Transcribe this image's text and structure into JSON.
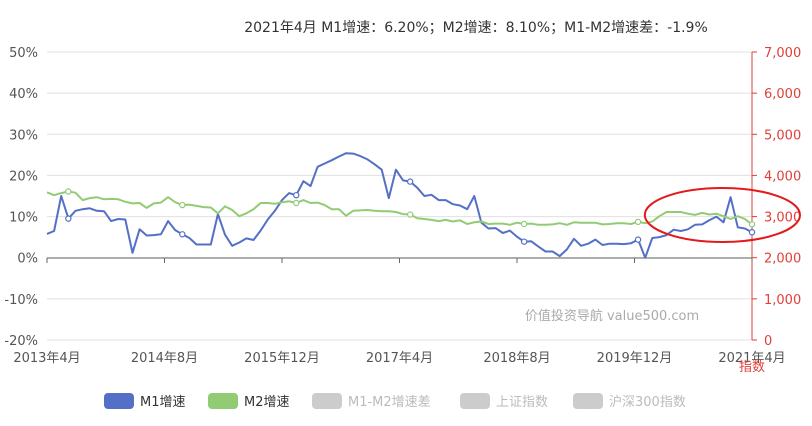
{
  "chart_data": {
    "type": "line",
    "title": "2021年4月    M1增速：6.20%；M2增速：8.10%；M1-M2增速差：-1.9%",
    "y_left": {
      "ticks": [
        "50%",
        "40%",
        "30%",
        "20%",
        "10%",
        "0%",
        "-10%",
        "-20%"
      ],
      "ylim": [
        -20,
        50
      ]
    },
    "y_right": {
      "label": "指数",
      "ticks": [
        "7,000",
        "6,000",
        "5,000",
        "4,000",
        "3,000",
        "2,000",
        "1,000",
        "0"
      ],
      "ylim": [
        0,
        7000
      ]
    },
    "x_ticks": [
      "2013年4月",
      "2014年8月",
      "2015年12月",
      "2017年4月",
      "2018年8月",
      "2019年12月",
      "2021年4月"
    ],
    "x_range": [
      "2013-01",
      "2021-04"
    ],
    "grid": true,
    "watermark": "价值投资导航 value500.com",
    "highlight": {
      "shape": "ellipse",
      "color": "#e31a1c",
      "around": [
        "2020-06",
        "2021-04"
      ]
    },
    "series": [
      {
        "name": "M1增速",
        "color": "#5470c6",
        "points": [
          [
            "2013-01",
            5.8
          ],
          [
            "2013-02",
            6.5
          ],
          [
            "2013-03",
            15.0
          ],
          [
            "2013-04",
            9.5
          ],
          [
            "2013-05",
            11.4
          ],
          [
            "2013-06",
            11.8
          ],
          [
            "2013-07",
            12.0
          ],
          [
            "2013-08",
            11.4
          ],
          [
            "2013-09",
            11.3
          ],
          [
            "2013-10",
            8.9
          ],
          [
            "2013-11",
            9.4
          ],
          [
            "2013-12",
            9.3
          ],
          [
            "2014-01",
            1.2
          ],
          [
            "2014-02",
            6.9
          ],
          [
            "2014-03",
            5.4
          ],
          [
            "2014-04",
            5.5
          ],
          [
            "2014-05",
            5.7
          ],
          [
            "2014-06",
            8.9
          ],
          [
            "2014-07",
            6.7
          ],
          [
            "2014-08",
            5.7
          ],
          [
            "2014-09",
            4.8
          ],
          [
            "2014-10",
            3.2
          ],
          [
            "2014-11",
            3.2
          ],
          [
            "2014-12",
            3.2
          ],
          [
            "2015-01",
            10.6
          ],
          [
            "2015-02",
            5.6
          ],
          [
            "2015-03",
            2.9
          ],
          [
            "2015-04",
            3.7
          ],
          [
            "2015-05",
            4.7
          ],
          [
            "2015-06",
            4.3
          ],
          [
            "2015-07",
            6.6
          ],
          [
            "2015-08",
            9.3
          ],
          [
            "2015-09",
            11.4
          ],
          [
            "2015-10",
            14.0
          ],
          [
            "2015-11",
            15.7
          ],
          [
            "2015-12",
            15.2
          ],
          [
            "2016-01",
            18.6
          ],
          [
            "2016-02",
            17.4
          ],
          [
            "2016-03",
            22.1
          ],
          [
            "2016-04",
            22.9
          ],
          [
            "2016-05",
            23.7
          ],
          [
            "2016-06",
            24.6
          ],
          [
            "2016-07",
            25.4
          ],
          [
            "2016-08",
            25.3
          ],
          [
            "2016-09",
            24.7
          ],
          [
            "2016-10",
            23.9
          ],
          [
            "2016-11",
            22.7
          ],
          [
            "2016-12",
            21.4
          ],
          [
            "2017-01",
            14.5
          ],
          [
            "2017-02",
            21.4
          ],
          [
            "2017-03",
            18.8
          ],
          [
            "2017-04",
            18.5
          ],
          [
            "2017-05",
            17.0
          ],
          [
            "2017-06",
            15.0
          ],
          [
            "2017-07",
            15.3
          ],
          [
            "2017-08",
            14.0
          ],
          [
            "2017-09",
            14.0
          ],
          [
            "2017-10",
            13.0
          ],
          [
            "2017-11",
            12.7
          ],
          [
            "2017-12",
            11.8
          ],
          [
            "2018-01",
            15.0
          ],
          [
            "2018-02",
            8.5
          ],
          [
            "2018-03",
            7.1
          ],
          [
            "2018-04",
            7.2
          ],
          [
            "2018-05",
            6.0
          ],
          [
            "2018-06",
            6.6
          ],
          [
            "2018-07",
            5.1
          ],
          [
            "2018-08",
            3.9
          ],
          [
            "2018-09",
            4.0
          ],
          [
            "2018-10",
            2.7
          ],
          [
            "2018-11",
            1.5
          ],
          [
            "2018-12",
            1.5
          ],
          [
            "2019-01",
            0.4
          ],
          [
            "2019-02",
            2.0
          ],
          [
            "2019-03",
            4.6
          ],
          [
            "2019-04",
            2.9
          ],
          [
            "2019-05",
            3.4
          ],
          [
            "2019-06",
            4.4
          ],
          [
            "2019-07",
            3.1
          ],
          [
            "2019-08",
            3.4
          ],
          [
            "2019-09",
            3.4
          ],
          [
            "2019-10",
            3.3
          ],
          [
            "2019-11",
            3.5
          ],
          [
            "2019-12",
            4.4
          ],
          [
            "2020-01",
            0.0
          ],
          [
            "2020-02",
            4.8
          ],
          [
            "2020-03",
            5.0
          ],
          [
            "2020-04",
            5.5
          ],
          [
            "2020-05",
            6.8
          ],
          [
            "2020-06",
            6.5
          ],
          [
            "2020-07",
            6.9
          ],
          [
            "2020-08",
            8.0
          ],
          [
            "2020-09",
            8.1
          ],
          [
            "2020-10",
            9.1
          ],
          [
            "2020-11",
            10.0
          ],
          [
            "2020-12",
            8.6
          ],
          [
            "2021-01",
            14.7
          ],
          [
            "2021-02",
            7.4
          ],
          [
            "2021-03",
            7.1
          ],
          [
            "2021-04",
            6.2
          ]
        ]
      },
      {
        "name": "M2增速",
        "color": "#91cc75",
        "points": [
          [
            "2013-01",
            15.9
          ],
          [
            "2013-02",
            15.2
          ],
          [
            "2013-03",
            15.7
          ],
          [
            "2013-04",
            16.1
          ],
          [
            "2013-05",
            15.8
          ],
          [
            "2013-06",
            14.0
          ],
          [
            "2013-07",
            14.5
          ],
          [
            "2013-08",
            14.7
          ],
          [
            "2013-09",
            14.2
          ],
          [
            "2013-10",
            14.3
          ],
          [
            "2013-11",
            14.2
          ],
          [
            "2013-12",
            13.6
          ],
          [
            "2014-01",
            13.2
          ],
          [
            "2014-02",
            13.3
          ],
          [
            "2014-03",
            12.1
          ],
          [
            "2014-04",
            13.2
          ],
          [
            "2014-05",
            13.4
          ],
          [
            "2014-06",
            14.7
          ],
          [
            "2014-07",
            13.5
          ],
          [
            "2014-08",
            12.8
          ],
          [
            "2014-09",
            12.9
          ],
          [
            "2014-10",
            12.6
          ],
          [
            "2014-11",
            12.3
          ],
          [
            "2014-12",
            12.2
          ],
          [
            "2015-01",
            10.8
          ],
          [
            "2015-02",
            12.5
          ],
          [
            "2015-03",
            11.6
          ],
          [
            "2015-04",
            10.1
          ],
          [
            "2015-05",
            10.8
          ],
          [
            "2015-06",
            11.8
          ],
          [
            "2015-07",
            13.3
          ],
          [
            "2015-08",
            13.3
          ],
          [
            "2015-09",
            13.1
          ],
          [
            "2015-10",
            13.5
          ],
          [
            "2015-11",
            13.7
          ],
          [
            "2015-12",
            13.3
          ],
          [
            "2016-01",
            14.0
          ],
          [
            "2016-02",
            13.3
          ],
          [
            "2016-03",
            13.4
          ],
          [
            "2016-04",
            12.8
          ],
          [
            "2016-05",
            11.8
          ],
          [
            "2016-06",
            11.8
          ],
          [
            "2016-07",
            10.2
          ],
          [
            "2016-08",
            11.4
          ],
          [
            "2016-09",
            11.5
          ],
          [
            "2016-10",
            11.6
          ],
          [
            "2016-11",
            11.4
          ],
          [
            "2016-12",
            11.3
          ],
          [
            "2017-01",
            11.3
          ],
          [
            "2017-02",
            11.1
          ],
          [
            "2017-03",
            10.6
          ],
          [
            "2017-04",
            10.5
          ],
          [
            "2017-05",
            9.6
          ],
          [
            "2017-06",
            9.4
          ],
          [
            "2017-07",
            9.2
          ],
          [
            "2017-08",
            8.9
          ],
          [
            "2017-09",
            9.2
          ],
          [
            "2017-10",
            8.8
          ],
          [
            "2017-11",
            9.1
          ],
          [
            "2017-12",
            8.2
          ],
          [
            "2018-01",
            8.6
          ],
          [
            "2018-02",
            8.8
          ],
          [
            "2018-03",
            8.2
          ],
          [
            "2018-04",
            8.3
          ],
          [
            "2018-05",
            8.3
          ],
          [
            "2018-06",
            8.0
          ],
          [
            "2018-07",
            8.5
          ],
          [
            "2018-08",
            8.2
          ],
          [
            "2018-09",
            8.3
          ],
          [
            "2018-10",
            8.0
          ],
          [
            "2018-11",
            8.0
          ],
          [
            "2018-12",
            8.1
          ],
          [
            "2019-01",
            8.4
          ],
          [
            "2019-02",
            8.0
          ],
          [
            "2019-03",
            8.6
          ],
          [
            "2019-04",
            8.5
          ],
          [
            "2019-05",
            8.5
          ],
          [
            "2019-06",
            8.5
          ],
          [
            "2019-07",
            8.1
          ],
          [
            "2019-08",
            8.2
          ],
          [
            "2019-09",
            8.4
          ],
          [
            "2019-10",
            8.4
          ],
          [
            "2019-11",
            8.2
          ],
          [
            "2019-12",
            8.7
          ],
          [
            "2020-01",
            8.4
          ],
          [
            "2020-02",
            8.8
          ],
          [
            "2020-03",
            10.1
          ],
          [
            "2020-04",
            11.1
          ],
          [
            "2020-05",
            11.1
          ],
          [
            "2020-06",
            11.1
          ],
          [
            "2020-07",
            10.7
          ],
          [
            "2020-08",
            10.4
          ],
          [
            "2020-09",
            10.9
          ],
          [
            "2020-10",
            10.5
          ],
          [
            "2020-11",
            10.7
          ],
          [
            "2020-12",
            10.1
          ],
          [
            "2021-01",
            9.4
          ],
          [
            "2021-02",
            10.1
          ],
          [
            "2021-03",
            9.4
          ],
          [
            "2021-04",
            8.1
          ]
        ]
      }
    ],
    "legend": [
      {
        "name": "M1增速",
        "color": "#5470c6",
        "active": true
      },
      {
        "name": "M2增速",
        "color": "#91cc75",
        "active": true
      },
      {
        "name": "M1-M2增速差",
        "color": "#cccccc",
        "active": false
      },
      {
        "name": "上证指数",
        "color": "#cccccc",
        "active": false
      },
      {
        "name": "沪深300指数",
        "color": "#cccccc",
        "active": false
      }
    ]
  }
}
